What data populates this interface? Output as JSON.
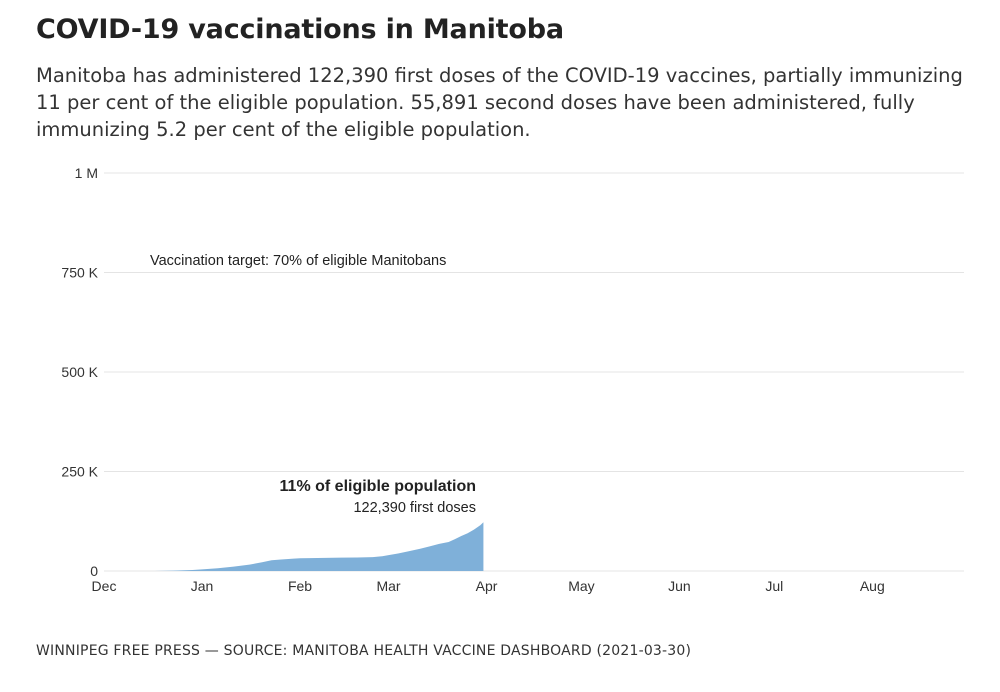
{
  "title": "COVID-19 vaccinations in Manitoba",
  "subtitle": "Manitoba has administered 122,390 first doses of the COVID-19 vaccines, partially immunizing 11 per cent of the eligible population. 55,891 second doses have been administered, fully immunizing 5.2 per cent of the eligible population.",
  "footer": "WINNIPEG FREE PRESS — SOURCE: MANITOBA HEALTH VACCINE DASHBOARD (2021-03-30)",
  "colors": {
    "area": "#7fb0d9",
    "grid": "#e4e4e4",
    "text": "#222222"
  },
  "chart_data": {
    "type": "area",
    "title": "",
    "xlabel": "",
    "ylabel": "",
    "ylim": [
      0,
      1000000
    ],
    "xlim_day_index": [
      0,
      272
    ],
    "grid": true,
    "y_ticks": [
      {
        "value": 0,
        "label": "0"
      },
      {
        "value": 250000,
        "label": "250 K"
      },
      {
        "value": 500000,
        "label": "500 K"
      },
      {
        "value": 750000,
        "label": "750 K"
      },
      {
        "value": 1000000,
        "label": "1 M"
      }
    ],
    "x_ticks": [
      {
        "day": 0,
        "label": "Dec"
      },
      {
        "day": 31,
        "label": "Jan"
      },
      {
        "day": 62,
        "label": "Feb"
      },
      {
        "day": 90,
        "label": "Mar"
      },
      {
        "day": 121,
        "label": "Apr"
      },
      {
        "day": 151,
        "label": "May"
      },
      {
        "day": 182,
        "label": "Jun"
      },
      {
        "day": 212,
        "label": "Jul"
      },
      {
        "day": 243,
        "label": "Aug"
      }
    ],
    "series": [
      {
        "name": "First doses",
        "x_day_index": [
          16,
          22,
          28,
          31,
          36,
          41,
          46,
          50,
          53,
          56,
          60,
          62,
          65,
          70,
          75,
          80,
          85,
          88,
          90,
          93,
          96,
          100,
          103,
          106,
          109,
          111,
          113,
          115,
          117,
          119,
          120
        ],
        "values": [
          0,
          1000,
          2500,
          4000,
          7000,
          11000,
          16000,
          22000,
          27000,
          29000,
          31000,
          32000,
          32500,
          33000,
          33500,
          34000,
          35000,
          37000,
          40000,
          44000,
          49000,
          56000,
          62000,
          68000,
          73000,
          80000,
          88000,
          95000,
          104000,
          115000,
          122390
        ]
      }
    ],
    "annotations": {
      "target_label": "Vaccination target: 70% of eligible Manitobans",
      "current_headline": "11% of eligible population",
      "current_detail": "122,390 first doses"
    }
  }
}
